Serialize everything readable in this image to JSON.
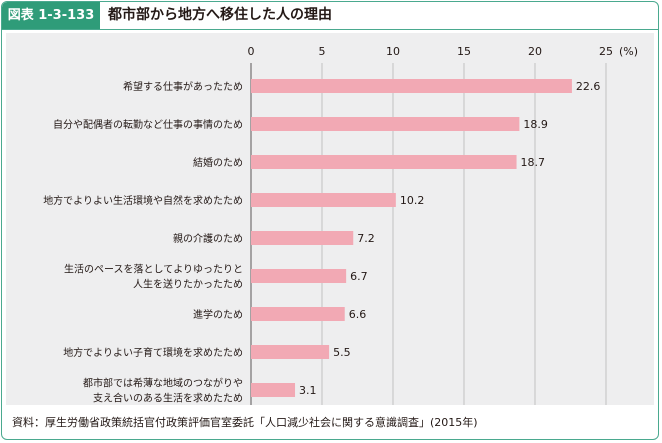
{
  "header": {
    "badge": "図表 1-3-133",
    "title": "都市部から地方へ移住した人の理由"
  },
  "footer": {
    "source": "資料：厚生労働省政策統括官付政策評価官室委託「人口減少社会に関する意識調査」(2015年)"
  },
  "colors": {
    "accent": "#2f9c79",
    "bar": "#f2a9b4",
    "panel": "#eeeeef",
    "grid": "#b5b5b6"
  },
  "chart_data": {
    "type": "bar",
    "orientation": "horizontal",
    "unit": "(%)",
    "xlim": [
      0,
      25
    ],
    "ticks": [
      "0",
      "5",
      "10",
      "15",
      "20",
      "25"
    ],
    "tick_values": [
      0,
      5,
      10,
      15,
      20,
      25
    ],
    "grid": true,
    "categories": [
      [
        "希望する仕事があったため"
      ],
      [
        "自分や配偶者の転勤など仕事の事情のため"
      ],
      [
        "結婚のため"
      ],
      [
        "地方でよりよい生活環境や自然を求めたため"
      ],
      [
        "親の介護のため"
      ],
      [
        "生活のペースを落としてよりゆったりと",
        "人生を送りたかったため"
      ],
      [
        "進学のため"
      ],
      [
        "地方でよりよい子育て環境を求めたため"
      ],
      [
        "都市部では希薄な地域のつながりや",
        "支え合いのある生活を求めたため"
      ]
    ],
    "values": [
      22.6,
      18.9,
      18.7,
      10.2,
      7.2,
      6.7,
      6.6,
      5.5,
      3.1
    ],
    "value_labels": [
      "22.6",
      "18.9",
      "18.7",
      "10.2",
      "7.2",
      "6.7",
      "6.6",
      "5.5",
      "3.1"
    ]
  }
}
